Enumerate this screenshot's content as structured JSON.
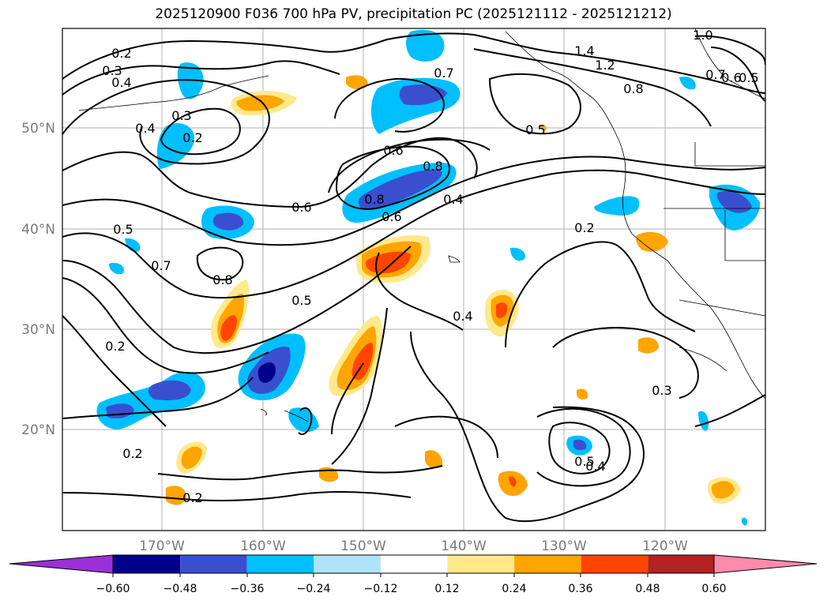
{
  "title": "2025120900 F036 700 hPa PV, precipitation PC (2025121112 - 2025121212)",
  "lon_ticks": [
    "170°W",
    "160°W",
    "150°W",
    "140°W",
    "130°W",
    "120°W"
  ],
  "lat_ticks": [
    "50°N",
    "40°N",
    "30°N",
    "20°N"
  ],
  "contour_labels": [
    "0.2",
    "0.3",
    "0.4",
    "0.3",
    "0.2",
    "0.4",
    "0.6",
    "0.8",
    "0.8",
    "0.6",
    "0.6",
    "0.4",
    "0.7",
    "1.4",
    "1.2",
    "0.8",
    "0.5",
    "1.0",
    "0.5",
    "0.7",
    "0.8",
    "0.5",
    "0.2",
    "0.4",
    "0.2",
    "0.3",
    "0.2",
    "0.2",
    "0.5",
    "0.4",
    "0.7",
    "0.6",
    "0.5"
  ],
  "colorbar": {
    "ticks": [
      "−0.60",
      "−0.48",
      "−0.36",
      "−0.24",
      "−0.12",
      "0.12",
      "0.24",
      "0.36",
      "0.48",
      "0.60"
    ],
    "colors": [
      "#9b30d9",
      "#00008b",
      "#3a4fcf",
      "#00bfff",
      "#aee3fa",
      "#ffffff",
      "#ffe98a",
      "#ffa500",
      "#ff4500",
      "#b22222",
      "#ff8aad"
    ]
  }
}
